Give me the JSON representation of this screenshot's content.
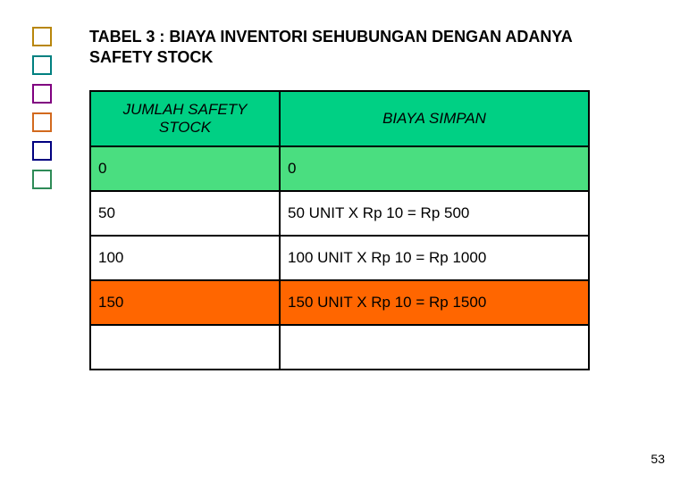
{
  "title": "TABEL 3 : BIAYA INVENTORI SEHUBUNGAN DENGAN ADANYA SAFETY STOCK",
  "page_number": "53",
  "deco_colors": [
    "#b8860b",
    "#008080",
    "#800080",
    "#d2691e",
    "#000080",
    "#2e8b57"
  ],
  "table": {
    "header_bg": "#00d084",
    "columns": [
      "JUMLAH SAFETY STOCK",
      "BIAYA SIMPAN"
    ],
    "rows": [
      {
        "bg": "#4ade80",
        "cells": [
          "0",
          "0"
        ]
      },
      {
        "bg": "#ffffff",
        "cells": [
          "50",
          "50 UNIT X Rp 10 = Rp 500"
        ]
      },
      {
        "bg": "#ffffff",
        "cells": [
          "100",
          "100 UNIT X Rp 10 = Rp 1000"
        ]
      },
      {
        "bg": "#ff6600",
        "cells": [
          "150",
          "150 UNIT X Rp 10 = Rp 1500"
        ]
      },
      {
        "bg": "#ffffff",
        "cells": [
          "",
          ""
        ]
      }
    ]
  }
}
